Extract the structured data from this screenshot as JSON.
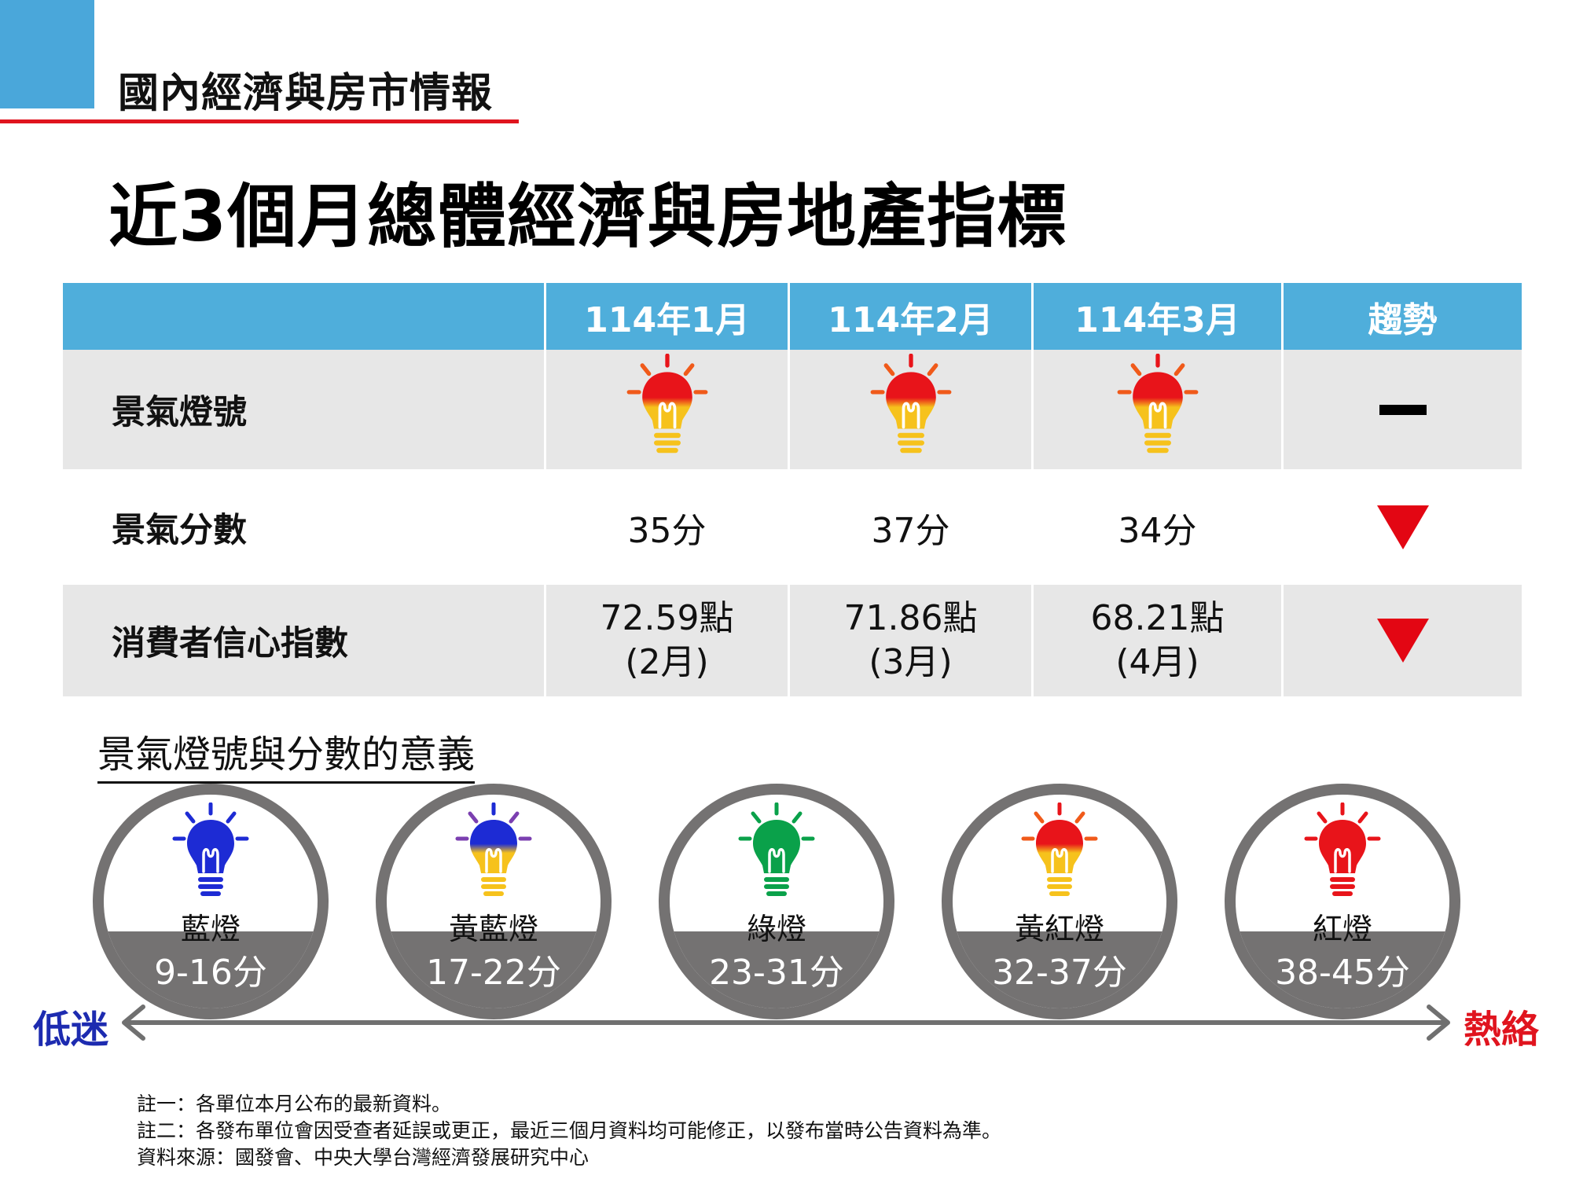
{
  "header": {
    "section_title": "國內經濟與房市情報",
    "accent_color": "#4aa7da",
    "line_color": "#e0141e"
  },
  "page_title": "近3個月總體經濟與房地產指標",
  "table": {
    "columns": [
      "",
      "114年1月",
      "114年2月",
      "114年3月",
      "趨勢"
    ],
    "rows": [
      {
        "label": "景氣燈號",
        "values": [
          "yellow-red-light-icon",
          "yellow-red-light-icon",
          "yellow-red-light-icon"
        ],
        "trend": "flat-dash"
      },
      {
        "label": "景氣分數",
        "values": [
          "35分",
          "37分",
          "34分"
        ],
        "trend": "down-triangle"
      },
      {
        "label": "消費者信心指數",
        "values": [
          {
            "value": "72.59點",
            "month": "(2月)"
          },
          {
            "value": "71.86點",
            "month": "(3月)"
          },
          {
            "value": "68.21點",
            "month": "(4月)"
          }
        ],
        "trend": "down-triangle"
      }
    ],
    "trend_down_color": "#e30613"
  },
  "meaning": {
    "title": "景氣燈號與分數的意義",
    "lights": [
      {
        "name": "藍燈",
        "range": "9-16分",
        "top_color": "#1d2bd4",
        "bottom_color": "#1d2bd4"
      },
      {
        "name": "黃藍燈",
        "range": "17-22分",
        "top_color": "#1d2bd4",
        "bottom_color": "#f6c21c"
      },
      {
        "name": "綠燈",
        "range": "23-31分",
        "top_color": "#0aa14a",
        "bottom_color": "#0aa14a"
      },
      {
        "name": "黃紅燈",
        "range": "32-37分",
        "top_color": "#e8141a",
        "bottom_color": "#f6c21c"
      },
      {
        "name": "紅燈",
        "range": "38-45分",
        "top_color": "#e8141a",
        "bottom_color": "#e8141a"
      }
    ],
    "axis_low": "低迷",
    "axis_high": "熱絡"
  },
  "notes": [
    "註一：各單位本月公布的最新資料。",
    "註二：各發布單位會因受查者延誤或更正，最近三個月資料均可能修正，以發布當時公告資料為準。",
    "資料來源：國發會、中央大學台灣經濟發展研究中心"
  ]
}
